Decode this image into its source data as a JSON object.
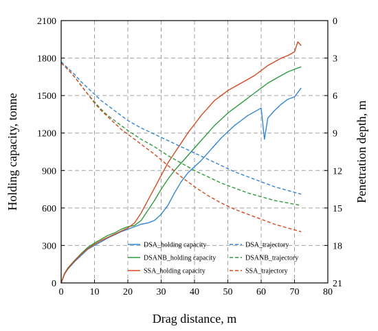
{
  "chart_data": {
    "type": "line",
    "title": "",
    "xlabel": "Drag distance, m",
    "ylabel": "Holding capacity, tonne",
    "y2label": "Penetration depth, m",
    "xlim": [
      0,
      80
    ],
    "ylim": [
      0,
      2100
    ],
    "y2lim": [
      0,
      21
    ],
    "y2_inverted": true,
    "x_ticks": [
      "0",
      "10",
      "20",
      "30",
      "40",
      "50",
      "60",
      "70",
      "80"
    ],
    "y_ticks": [
      "0",
      "300",
      "600",
      "900",
      "1200",
      "1500",
      "1800",
      "2100"
    ],
    "y2_ticks": [
      "0",
      "3",
      "6",
      "9",
      "12",
      "15",
      "18",
      "21"
    ],
    "grid": true,
    "legend_position": "bottom-right",
    "series": [
      {
        "name": "DSA_holding capacity",
        "axis": "left",
        "style": "solid",
        "color": "#2e86de",
        "x": [
          0,
          1,
          2,
          4,
          6,
          8,
          10,
          12,
          14,
          16,
          18,
          20,
          22,
          24,
          26,
          28,
          30,
          32,
          34,
          36,
          38,
          40,
          42,
          44,
          46,
          48,
          50,
          52,
          54,
          56,
          58,
          60,
          61,
          62,
          64,
          66,
          68,
          70,
          72
        ],
        "y": [
          0,
          70,
          110,
          170,
          220,
          270,
          300,
          330,
          360,
          385,
          410,
          430,
          450,
          470,
          480,
          500,
          550,
          620,
          720,
          810,
          880,
          930,
          980,
          1040,
          1100,
          1160,
          1210,
          1260,
          1300,
          1340,
          1370,
          1400,
          1150,
          1320,
          1380,
          1430,
          1470,
          1490,
          1560
        ]
      },
      {
        "name": "DSANB_holding capacity",
        "axis": "left",
        "style": "solid",
        "color": "#2a9d3a",
        "x": [
          0,
          1,
          2,
          4,
          6,
          8,
          10,
          12,
          14,
          16,
          18,
          20,
          22,
          24,
          26,
          28,
          30,
          32,
          34,
          36,
          38,
          40,
          42,
          44,
          46,
          48,
          50,
          52,
          54,
          56,
          58,
          60,
          62,
          64,
          66,
          68,
          70,
          72
        ],
        "y": [
          0,
          75,
          120,
          180,
          235,
          285,
          320,
          350,
          380,
          400,
          430,
          450,
          460,
          500,
          580,
          660,
          750,
          830,
          900,
          960,
          1020,
          1080,
          1140,
          1200,
          1260,
          1310,
          1360,
          1400,
          1440,
          1480,
          1520,
          1560,
          1600,
          1630,
          1660,
          1690,
          1710,
          1730
        ]
      },
      {
        "name": "SSA_holding capacity",
        "axis": "left",
        "style": "solid",
        "color": "#d9481c",
        "x": [
          0,
          1,
          2,
          4,
          6,
          8,
          10,
          12,
          14,
          16,
          18,
          20,
          22,
          24,
          26,
          28,
          30,
          32,
          34,
          36,
          38,
          40,
          42,
          44,
          46,
          48,
          50,
          52,
          54,
          56,
          58,
          60,
          62,
          64,
          66,
          68,
          70,
          71,
          72
        ],
        "y": [
          0,
          70,
          115,
          175,
          230,
          275,
          310,
          340,
          365,
          390,
          415,
          440,
          480,
          560,
          660,
          760,
          860,
          960,
          1040,
          1120,
          1200,
          1270,
          1340,
          1400,
          1460,
          1500,
          1540,
          1570,
          1600,
          1630,
          1660,
          1700,
          1740,
          1770,
          1800,
          1820,
          1850,
          1930,
          1900
        ]
      },
      {
        "name": "DSA_trajectory",
        "axis": "right",
        "style": "dashed",
        "color": "#2e86de",
        "x": [
          0,
          2,
          4,
          6,
          8,
          10,
          12,
          14,
          16,
          18,
          20,
          24,
          28,
          32,
          36,
          40,
          44,
          48,
          52,
          56,
          60,
          64,
          68,
          72
        ],
        "y": [
          3.3,
          3.8,
          4.3,
          4.9,
          5.4,
          5.9,
          6.4,
          6.8,
          7.2,
          7.6,
          8.0,
          8.6,
          9.1,
          9.6,
          10.1,
          10.6,
          11.1,
          11.6,
          12.1,
          12.5,
          12.9,
          13.3,
          13.6,
          13.9
        ]
      },
      {
        "name": "DSANB_trajectory",
        "axis": "right",
        "style": "dashed",
        "color": "#2a9d3a",
        "x": [
          0,
          2,
          4,
          6,
          8,
          10,
          12,
          14,
          16,
          18,
          20,
          24,
          28,
          32,
          36,
          40,
          44,
          48,
          52,
          56,
          60,
          64,
          68,
          72
        ],
        "y": [
          3.4,
          3.9,
          4.5,
          5.2,
          5.9,
          6.5,
          7.1,
          7.6,
          8.0,
          8.4,
          8.8,
          9.5,
          10.1,
          10.8,
          11.4,
          12.0,
          12.5,
          13.0,
          13.4,
          13.8,
          14.1,
          14.4,
          14.6,
          14.8
        ]
      },
      {
        "name": "SSA_trajectory",
        "axis": "right",
        "style": "dashed",
        "color": "#d9481c",
        "x": [
          0,
          2,
          4,
          6,
          8,
          10,
          12,
          14,
          16,
          18,
          20,
          24,
          28,
          32,
          36,
          40,
          44,
          48,
          52,
          56,
          60,
          64,
          68,
          72
        ],
        "y": [
          3.4,
          3.9,
          4.5,
          5.2,
          5.9,
          6.6,
          7.2,
          7.7,
          8.2,
          8.7,
          9.1,
          9.9,
          10.7,
          11.6,
          12.5,
          13.3,
          14.0,
          14.6,
          15.1,
          15.5,
          15.9,
          16.3,
          16.6,
          16.9
        ]
      }
    ]
  }
}
